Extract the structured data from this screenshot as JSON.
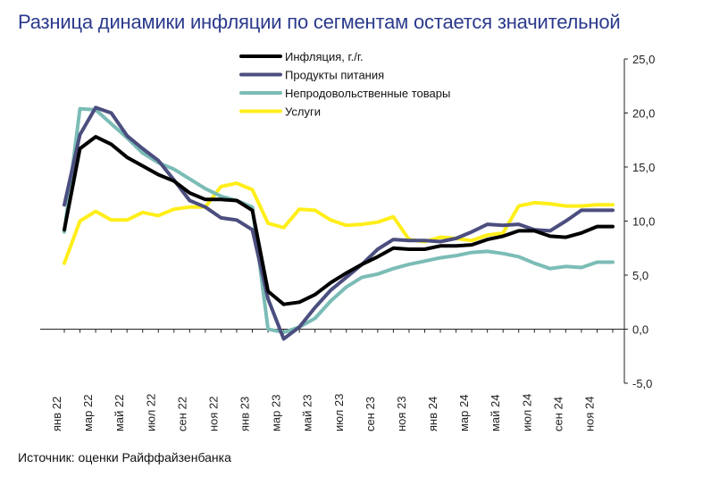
{
  "title": "Разница динамики инфляции по сегментам остается значительной",
  "source": "Источник: оценки Райффайзенбанка",
  "chart_data": {
    "type": "line",
    "x": [
      "янв 22",
      "фев 22",
      "мар 22",
      "апр 22",
      "май 22",
      "июн 22",
      "июл 22",
      "авг 22",
      "сен 22",
      "окт 22",
      "ноя 22",
      "дек 22",
      "янв 23",
      "фев 23",
      "мар 23",
      "апр 23",
      "май 23",
      "июн 23",
      "июл 23",
      "авг 23",
      "сен 23",
      "окт 23",
      "ноя 23",
      "дек 23",
      "янв 24",
      "фев 24",
      "мар 24",
      "апр 24",
      "май 24",
      "июн 24",
      "июл 24",
      "авг 24",
      "сен 24",
      "окт 24",
      "ноя 24",
      "дек 24"
    ],
    "x_tick_labels": [
      "янв 22",
      "мар 22",
      "май 22",
      "июл 22",
      "сен 22",
      "ноя 22",
      "янв 23",
      "мар 23",
      "май 23",
      "июл 23",
      "сен 23",
      "ноя 23",
      "янв 24",
      "мар 24",
      "май 24",
      "июл 24",
      "сен 24",
      "ноя 24"
    ],
    "y_tick_labels": [
      "25,0",
      "20,0",
      "15,0",
      "10,0",
      "5,0",
      "0,0",
      "-5,0"
    ],
    "ylim": [
      -5,
      25
    ],
    "y_ticks": [
      25,
      20,
      15,
      10,
      5,
      0,
      -5
    ],
    "grid": false,
    "legend_position": "top-center",
    "series": [
      {
        "name": "Инфляция, г./г.",
        "color": "#000000",
        "values": [
          9.2,
          16.7,
          17.8,
          17.1,
          15.9,
          15.1,
          14.3,
          13.7,
          12.6,
          12.0,
          12.0,
          11.9,
          11.0,
          3.5,
          2.3,
          2.5,
          3.2,
          4.3,
          5.2,
          6.0,
          6.7,
          7.5,
          7.4,
          7.4,
          7.7,
          7.7,
          7.8,
          8.3,
          8.6,
          9.1,
          9.1,
          8.6,
          8.5,
          8.9,
          9.5,
          9.5
        ]
      },
      {
        "name": "Продукты питания",
        "color": "#4b4e7e",
        "values": [
          11.5,
          18.0,
          20.5,
          20.0,
          17.9,
          16.7,
          15.6,
          13.8,
          11.9,
          11.3,
          10.3,
          10.1,
          9.2,
          2.8,
          -0.9,
          0.2,
          2.0,
          3.6,
          4.8,
          6.0,
          7.4,
          8.3,
          8.2,
          8.2,
          8.1,
          8.4,
          9.0,
          9.7,
          9.6,
          9.7,
          9.2,
          9.1,
          10.0,
          11.0,
          11.0,
          11.0
        ]
      },
      {
        "name": "Непродовольственные товары",
        "color": "#7bbcb6",
        "values": [
          9.0,
          20.4,
          20.3,
          19.0,
          17.7,
          16.3,
          15.4,
          14.8,
          13.9,
          13.0,
          12.3,
          11.9,
          11.3,
          0.0,
          -0.3,
          0.2,
          1.0,
          2.6,
          3.9,
          4.8,
          5.1,
          5.6,
          6.0,
          6.3,
          6.6,
          6.8,
          7.1,
          7.2,
          7.0,
          6.7,
          6.1,
          5.6,
          5.8,
          5.7,
          6.2,
          6.2
        ]
      },
      {
        "name": "Услуги",
        "color": "#ffee1a",
        "values": [
          6.1,
          10.0,
          10.9,
          10.1,
          10.1,
          10.8,
          10.5,
          11.1,
          11.3,
          11.3,
          13.2,
          13.5,
          12.9,
          9.8,
          9.4,
          11.1,
          11.0,
          10.1,
          9.6,
          9.7,
          9.9,
          10.4,
          8.3,
          8.1,
          8.5,
          8.4,
          8.2,
          8.7,
          8.9,
          11.4,
          11.7,
          11.6,
          11.4,
          11.4,
          11.5,
          11.5
        ]
      }
    ]
  }
}
